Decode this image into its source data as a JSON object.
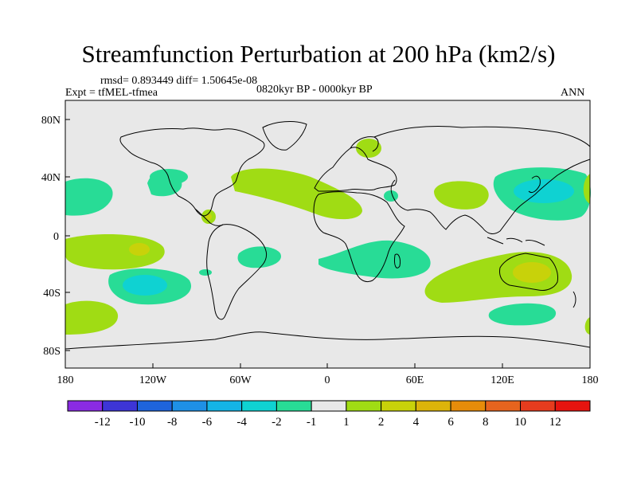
{
  "title": "Streamfunction Perturbation at 200 hPa (km2/s)",
  "stats_line": "rmsd= 0.893449 diff= 1.50645e-08",
  "experiment_line": "Expt = tfMEL-tfmea",
  "period_line": "0820kyr BP - 0000kyr BP",
  "season_label": "ANN",
  "lat_ticks": [
    "80N",
    "40N",
    "0",
    "40S",
    "80S"
  ],
  "lon_ticks": [
    "180",
    "120W",
    "60W",
    "0",
    "60E",
    "120E",
    "180"
  ],
  "colorbar": {
    "labels": [
      "-12",
      "-10",
      "-8",
      "-6",
      "-4",
      "-2",
      "-1",
      "1",
      "2",
      "4",
      "6",
      "8",
      "10",
      "12"
    ],
    "colors": [
      "#8a2be2",
      "#3d35d6",
      "#1e64dc",
      "#1e90e6",
      "#14b4e6",
      "#0fd2d2",
      "#28dc96",
      "#e8e8e8",
      "#a0dc14",
      "#c8d20a",
      "#dcb40a",
      "#e68c0a",
      "#e6641e",
      "#e63c1e",
      "#e6140f"
    ]
  },
  "map_colors": {
    "ocean": "#e8e8e8",
    "coast": "#000000"
  }
}
